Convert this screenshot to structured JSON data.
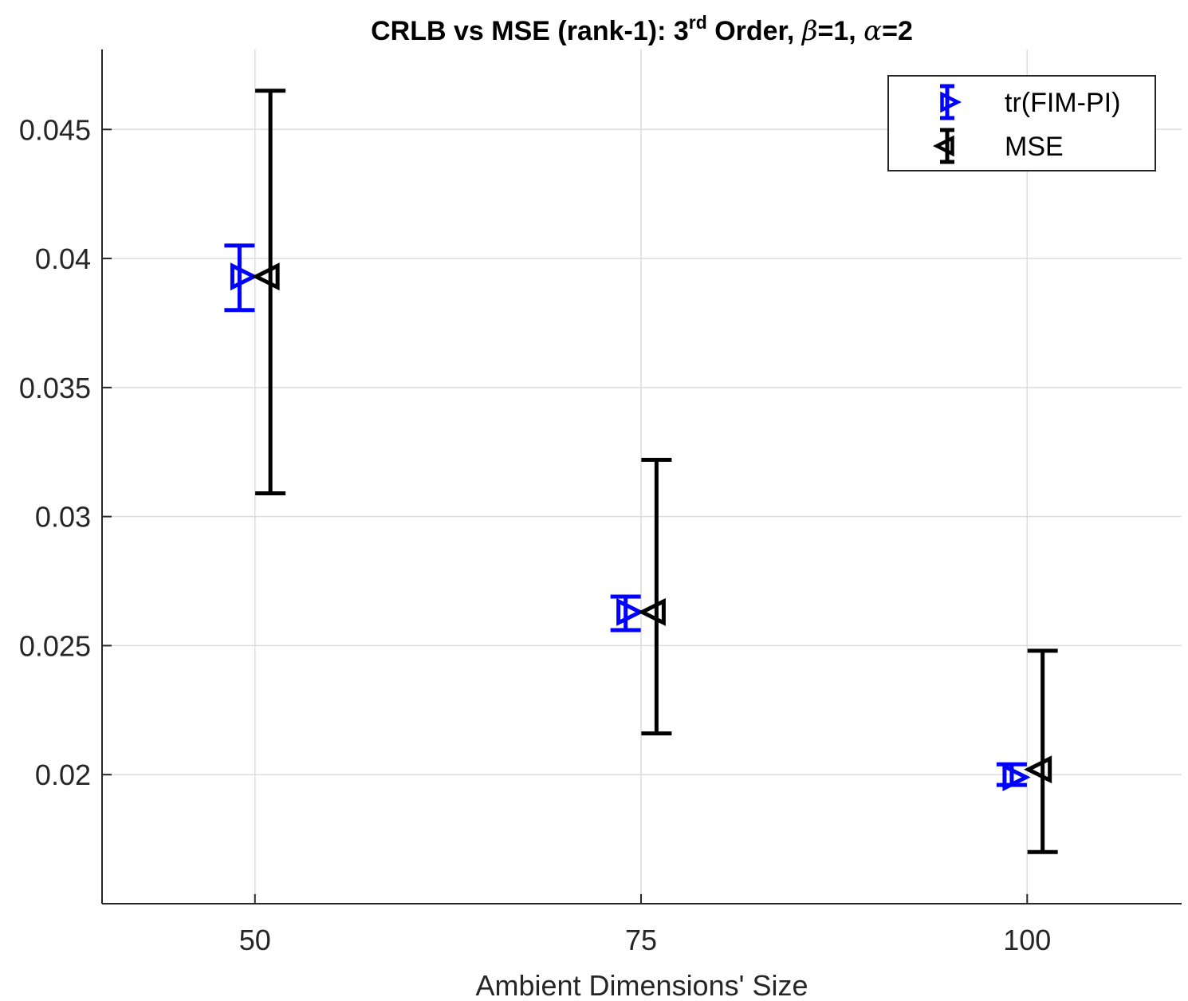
{
  "chart_data": {
    "type": "errorbar",
    "title": {
      "prefix": "CRLB vs MSE (rank-1): 3",
      "superscript": "rd",
      "middle": " Order, ",
      "beta_symbol": "β",
      "beta_value": "=1, ",
      "alpha_symbol": "α",
      "alpha_value": "=2"
    },
    "xlabel": "Ambient Dimensions' Size",
    "ylabel": "",
    "x_ticks": [
      50,
      75,
      100
    ],
    "x_tick_labels": [
      "50",
      "75",
      "100"
    ],
    "y_ticks": [
      0.02,
      0.025,
      0.03,
      0.035,
      0.04,
      0.045
    ],
    "y_tick_labels": [
      "0.02",
      "0.025",
      "0.03",
      "0.035",
      "0.04",
      "0.045"
    ],
    "xlim": [
      40.1,
      110
    ],
    "ylim": [
      0.015,
      0.0481
    ],
    "grid": true,
    "legend_position": "top-right",
    "series": [
      {
        "name": "tr(FIM-PI)",
        "color": "#0000ff",
        "marker": "triangle-right",
        "x_offset": -1,
        "x": [
          50,
          75,
          100
        ],
        "y": [
          0.0393,
          0.0263,
          0.0199
        ],
        "lower": [
          0.038,
          0.0256,
          0.0196
        ],
        "upper": [
          0.0405,
          0.0269,
          0.0204
        ]
      },
      {
        "name": "MSE",
        "color": "#000000",
        "marker": "triangle-left",
        "x_offset": 1,
        "x": [
          50,
          75,
          100
        ],
        "y": [
          0.0393,
          0.0263,
          0.0202
        ],
        "lower": [
          0.0309,
          0.0216,
          0.017
        ],
        "upper": [
          0.0465,
          0.0322,
          0.0248
        ]
      }
    ]
  }
}
